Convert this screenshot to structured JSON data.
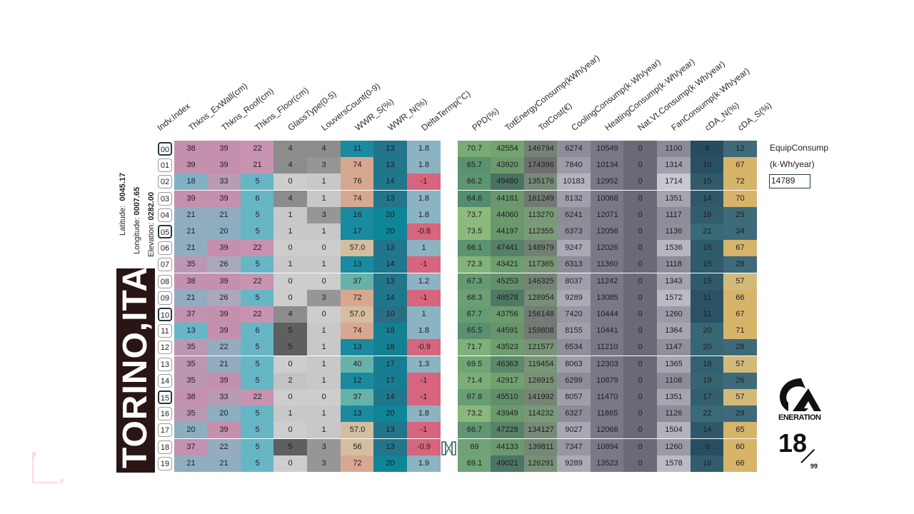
{
  "location": {
    "city": "TORINO,ITA",
    "latitude_label": "Latitude:",
    "latitude": "0045.17",
    "longitude_label": "Longitude:",
    "longitude": "0007.65",
    "elevation_label": "Elevation:",
    "elevation": "0282.00"
  },
  "headers": {
    "index": "Indv.Index",
    "left": [
      "Thkns_ExWall(cm)",
      "Thkns_Roof(cm)",
      "Thkns_Floor(cm)",
      "GlassType(0-5)",
      "LouversCount(0-9)",
      "WWR_S(%)",
      "WWR_N(%)",
      "DeltaTermp(°C)"
    ],
    "right": [
      "PPD(%)",
      "TotEnergyConsump(kWh/year)",
      "TotCost(€)",
      "CoolingConsump(k·Wh/year)",
      "HeatingConsump(k·Wh/year)",
      "Nat.Vt.Consump(k·Wh/year)",
      "FanConsump(k·Wh/year)",
      "cDA_N(%)",
      "cDA_S(%)"
    ]
  },
  "rows": [
    {
      "idx": "00",
      "l": [
        "38",
        "39",
        "22",
        "4",
        "4",
        "11",
        "13",
        "1.8"
      ],
      "r": [
        "70.7",
        "42554",
        "146794",
        "6274",
        "10549",
        "0",
        "1100",
        "8",
        "12"
      ]
    },
    {
      "idx": "01",
      "l": [
        "39",
        "39",
        "21",
        "4",
        "3",
        "74",
        "13",
        "1.8"
      ],
      "r": [
        "65.7",
        "43920",
        "174396",
        "7840",
        "10134",
        "0",
        "1314",
        "10",
        "67"
      ]
    },
    {
      "idx": "02",
      "l": [
        "18",
        "33",
        "5",
        "0",
        "1",
        "76",
        "14",
        "-1"
      ],
      "r": [
        "66.2",
        "49480",
        "135176",
        "10183",
        "12952",
        "0",
        "1714",
        "15",
        "72"
      ]
    },
    {
      "idx": "03",
      "l": [
        "39",
        "39",
        "6",
        "4",
        "1",
        "74",
        "13",
        "1.8"
      ],
      "r": [
        "64.6",
        "44181",
        "161249",
        "8132",
        "10068",
        "0",
        "1351",
        "14",
        "70"
      ]
    },
    {
      "idx": "04",
      "l": [
        "21",
        "21",
        "5",
        "1",
        "3",
        "16",
        "20",
        "1.8"
      ],
      "r": [
        "73.7",
        "44060",
        "113270",
        "6241",
        "12071",
        "0",
        "1117",
        "16",
        "25"
      ]
    },
    {
      "idx": "05",
      "l": [
        "21",
        "20",
        "5",
        "1",
        "1",
        "17",
        "20",
        "-0.8"
      ],
      "r": [
        "73.5",
        "44197",
        "112355",
        "6373",
        "12056",
        "0",
        "1136",
        "21",
        "34"
      ]
    },
    {
      "idx": "06",
      "l": [
        "21",
        "39",
        "22",
        "0",
        "0",
        "57.0",
        "13",
        "1"
      ],
      "r": [
        "66.1",
        "47441",
        "148979",
        "9247",
        "12026",
        "0",
        "1536",
        "15",
        "67"
      ]
    },
    {
      "idx": "07",
      "l": [
        "35",
        "26",
        "5",
        "1",
        "1",
        "13",
        "14",
        "-1"
      ],
      "r": [
        "72.3",
        "43421",
        "117365",
        "6313",
        "11360",
        "0",
        "1118",
        "15",
        "28"
      ]
    },
    {
      "idx": "08",
      "l": [
        "38",
        "39",
        "22",
        "0",
        "0",
        "37",
        "13",
        "1.2"
      ],
      "r": [
        "67.3",
        "45253",
        "146325",
        "8037",
        "11242",
        "0",
        "1343",
        "15",
        "57"
      ]
    },
    {
      "idx": "09",
      "l": [
        "21",
        "26",
        "5",
        "0",
        "3",
        "72",
        "14",
        "-1"
      ],
      "r": [
        "68.3",
        "48578",
        "128954",
        "9289",
        "13085",
        "0",
        "1572",
        "11",
        "66"
      ]
    },
    {
      "idx": "10",
      "l": [
        "37",
        "39",
        "22",
        "4",
        "0",
        "57.0",
        "10",
        "1"
      ],
      "r": [
        "67.7",
        "43756",
        "156148",
        "7420",
        "10444",
        "0",
        "1260",
        "11",
        "67"
      ]
    },
    {
      "idx": "11",
      "l": [
        "13",
        "39",
        "6",
        "5",
        "1",
        "74",
        "18",
        "1.8"
      ],
      "r": [
        "65.5",
        "44591",
        "159808",
        "8155",
        "10441",
        "0",
        "1364",
        "20",
        "71"
      ]
    },
    {
      "idx": "12",
      "l": [
        "35",
        "22",
        "5",
        "5",
        "1",
        "13",
        "18",
        "-0.9"
      ],
      "r": [
        "71.7",
        "43523",
        "121577",
        "6534",
        "11210",
        "0",
        "1147",
        "20",
        "28"
      ]
    },
    {
      "idx": "13",
      "l": [
        "35",
        "21",
        "5",
        "0",
        "1",
        "40",
        "17",
        "1.3"
      ],
      "r": [
        "69.5",
        "46363",
        "119454",
        "8063",
        "12303",
        "0",
        "1365",
        "18",
        "57"
      ]
    },
    {
      "idx": "14",
      "l": [
        "35",
        "39",
        "5",
        "2",
        "1",
        "12",
        "17",
        "-1"
      ],
      "r": [
        "71.4",
        "42917",
        "126915",
        "6299",
        "10879",
        "0",
        "1108",
        "19",
        "26"
      ]
    },
    {
      "idx": "15",
      "l": [
        "38",
        "33",
        "22",
        "0",
        "0",
        "37",
        "14",
        "-1"
      ],
      "r": [
        "67.8",
        "45510",
        "141992",
        "8057",
        "11470",
        "0",
        "1351",
        "17",
        "57"
      ]
    },
    {
      "idx": "16",
      "l": [
        "35",
        "20",
        "5",
        "1",
        "1",
        "13",
        "20",
        "1.8"
      ],
      "r": [
        "73.2",
        "43949",
        "114232",
        "6327",
        "11865",
        "0",
        "1126",
        "22",
        "29"
      ]
    },
    {
      "idx": "17",
      "l": [
        "20",
        "39",
        "5",
        "0",
        "1",
        "57.0",
        "13",
        "-1"
      ],
      "r": [
        "66.7",
        "47228",
        "134127",
        "9027",
        "12066",
        "0",
        "1504",
        "14",
        "65"
      ]
    },
    {
      "idx": "18",
      "l": [
        "37",
        "22",
        "5",
        "5",
        "3",
        "56",
        "13",
        "-0.9"
      ],
      "r": [
        "69",
        "44133",
        "139811",
        "7347",
        "10894",
        "0",
        "1260",
        "9",
        "60"
      ]
    },
    {
      "idx": "19",
      "l": [
        "21",
        "21",
        "5",
        "0",
        "3",
        "72",
        "20",
        "1.9"
      ],
      "r": [
        "69.1",
        "49021",
        "126291",
        "9289",
        "13523",
        "0",
        "1578",
        "16",
        "66"
      ]
    }
  ],
  "selected_indices": [
    "00",
    "05",
    "10",
    "15"
  ],
  "equip": {
    "label1": "EquipConsump",
    "label2": "(k·Wh/year)",
    "value": "14789"
  },
  "logo": {
    "text": "ENERATION"
  },
  "generation": {
    "current": "18",
    "total": "99"
  },
  "axis": {
    "x": "x",
    "y": "y"
  }
}
